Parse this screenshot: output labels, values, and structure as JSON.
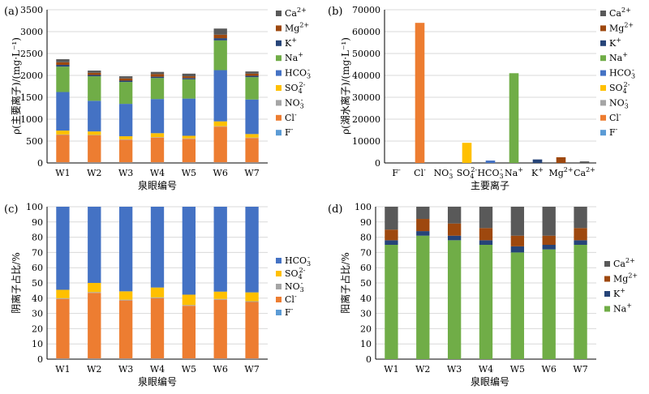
{
  "colors": {
    "F": "#5b9bd5",
    "Cl": "#ed7d31",
    "NO3": "#a5a5a5",
    "SO4": "#ffc000",
    "HCO3": "#4472c4",
    "Na": "#70ad47",
    "K": "#264478",
    "Mg": "#9e480e",
    "Ca": "#595959"
  },
  "chart_data": [
    {
      "panel_label": "(a)",
      "type": "bar",
      "stacked": true,
      "categories": [
        "W1",
        "W2",
        "W3",
        "W4",
        "W5",
        "W6",
        "W7"
      ],
      "xlabel": "泉眼编号",
      "ylabel_html": "ρ(主要离子)/(mg·L⁻¹)",
      "ylim": [
        0,
        3500
      ],
      "yticks": [
        "0",
        "500",
        "1000",
        "1500",
        "2000",
        "2500",
        "3000",
        "3500"
      ],
      "legend_position": "right",
      "series": [
        {
          "key": "F",
          "name": "F-",
          "sup": "-",
          "sub": "",
          "values": [
            10,
            10,
            10,
            10,
            10,
            10,
            10
          ]
        },
        {
          "key": "Cl",
          "name": "Cl-",
          "sup": "-",
          "sub": "",
          "values": [
            630,
            620,
            520,
            570,
            540,
            820,
            560
          ]
        },
        {
          "key": "NO3",
          "name": "NO3-",
          "sup": "-",
          "sub": "3",
          "values": [
            10,
            10,
            10,
            10,
            10,
            10,
            10
          ]
        },
        {
          "key": "SO4",
          "name": "SO42-",
          "sup": "2-",
          "sub": "4",
          "values": [
            90,
            80,
            70,
            90,
            60,
            110,
            80
          ]
        },
        {
          "key": "HCO3",
          "name": "HCO3-",
          "sup": "-",
          "sub": "3",
          "values": [
            880,
            700,
            740,
            780,
            850,
            1170,
            790
          ]
        },
        {
          "key": "Na",
          "name": "Na+",
          "sup": "+",
          "sub": "",
          "values": [
            580,
            560,
            500,
            480,
            440,
            680,
            510
          ]
        },
        {
          "key": "K",
          "name": "K+",
          "sup": "+",
          "sub": "",
          "values": [
            40,
            30,
            30,
            30,
            30,
            50,
            30
          ]
        },
        {
          "key": "Mg",
          "name": "Mg2+",
          "sup": "2+",
          "sub": "",
          "values": [
            60,
            50,
            50,
            60,
            40,
            80,
            50
          ]
        },
        {
          "key": "Ca",
          "name": "Ca2+",
          "sup": "2+",
          "sub": "",
          "values": [
            70,
            50,
            50,
            50,
            60,
            140,
            50
          ]
        }
      ]
    },
    {
      "panel_label": "(b)",
      "type": "bar",
      "stacked": false,
      "categories": [
        "F-",
        "Cl-",
        "NO3-",
        "SO42-",
        "HCO3-",
        "Na+",
        "K+",
        "Mg2+",
        "Ca2+"
      ],
      "xlabel": "主要离子",
      "ylabel_html": "ρ(湖水离子)/(mg·L⁻¹)",
      "ylim": [
        0,
        70000
      ],
      "yticks": [
        "0",
        "10000",
        "20000",
        "30000",
        "40000",
        "50000",
        "60000",
        "70000"
      ],
      "legend_position": "right",
      "series": [
        {
          "key": "F",
          "name": "F-",
          "sup": "-",
          "sub": "",
          "value": 0
        },
        {
          "key": "Cl",
          "name": "Cl-",
          "sup": "-",
          "sub": "",
          "value": 64000
        },
        {
          "key": "NO3",
          "name": "NO3-",
          "sup": "-",
          "sub": "3",
          "value": 0
        },
        {
          "key": "SO4",
          "name": "SO42-",
          "sup": "2-",
          "sub": "4",
          "value": 9200
        },
        {
          "key": "HCO3",
          "name": "HCO3-",
          "sup": "-",
          "sub": "3",
          "value": 1100
        },
        {
          "key": "Na",
          "name": "Na+",
          "sup": "+",
          "sub": "",
          "value": 41000
        },
        {
          "key": "K",
          "name": "K+",
          "sup": "+",
          "sub": "",
          "value": 1600
        },
        {
          "key": "Mg",
          "name": "Mg2+",
          "sup": "2+",
          "sub": "",
          "value": 2600
        },
        {
          "key": "Ca",
          "name": "Ca2+",
          "sup": "2+",
          "sub": "",
          "value": 700
        }
      ]
    },
    {
      "panel_label": "(c)",
      "type": "bar",
      "stacked": true,
      "categories": [
        "W1",
        "W2",
        "W3",
        "W4",
        "W5",
        "W6",
        "W7"
      ],
      "xlabel": "泉眼编号",
      "ylabel": "阴离子占比/%",
      "ylim": [
        0,
        100
      ],
      "yticks": [
        "0",
        "10",
        "20",
        "30",
        "40",
        "50",
        "60",
        "70",
        "80",
        "90",
        "100"
      ],
      "legend_position": "right",
      "series": [
        {
          "key": "F",
          "name": "F-",
          "sup": "-",
          "sub": "",
          "values": [
            0.3,
            0.3,
            0.3,
            0.3,
            0.3,
            0.3,
            0.3
          ]
        },
        {
          "key": "Cl",
          "name": "Cl-",
          "sup": "-",
          "sub": "",
          "values": [
            39.2,
            43.2,
            38.2,
            39.7,
            34.7,
            38.7,
            37.2
          ]
        },
        {
          "key": "NO3",
          "name": "NO3-",
          "sup": "-",
          "sub": "3",
          "values": [
            0.5,
            0.5,
            0.5,
            0.5,
            0.5,
            0.5,
            0.5
          ]
        },
        {
          "key": "SO4",
          "name": "SO42-",
          "sup": "2-",
          "sub": "4",
          "values": [
            5.5,
            6.0,
            5.5,
            6.5,
            6.8,
            4.8,
            5.8
          ]
        },
        {
          "key": "HCO3",
          "name": "HCO3-",
          "sup": "-",
          "sub": "3",
          "values": [
            54.5,
            50.0,
            55.5,
            53.0,
            57.7,
            55.7,
            56.2
          ]
        }
      ]
    },
    {
      "panel_label": "(d)",
      "type": "bar",
      "stacked": true,
      "categories": [
        "W1",
        "W2",
        "W3",
        "W4",
        "W5",
        "W6",
        "W7"
      ],
      "xlabel": "泉眼编号",
      "ylabel": "阳离子占比/%",
      "ylim": [
        0,
        100
      ],
      "yticks": [
        "0",
        "10",
        "20",
        "30",
        "40",
        "50",
        "60",
        "70",
        "80",
        "90",
        "100"
      ],
      "legend_position": "right",
      "series": [
        {
          "key": "Na",
          "name": "Na+",
          "sup": "+",
          "sub": "",
          "values": [
            75,
            81,
            78,
            75,
            70,
            72,
            75
          ]
        },
        {
          "key": "K",
          "name": "K+",
          "sup": "+",
          "sub": "",
          "values": [
            3,
            3,
            3,
            3,
            4,
            3,
            3
          ]
        },
        {
          "key": "Mg",
          "name": "Mg2+",
          "sup": "2+",
          "sub": "",
          "values": [
            7,
            8,
            8,
            8,
            7,
            6,
            8
          ]
        },
        {
          "key": "Ca",
          "name": "Ca2+",
          "sup": "2+",
          "sub": "",
          "values": [
            15,
            8,
            11,
            14,
            19,
            19,
            14
          ]
        }
      ]
    }
  ]
}
